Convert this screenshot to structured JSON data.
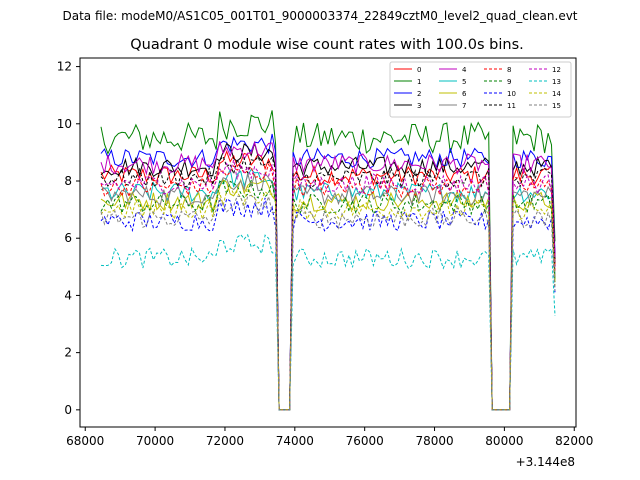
{
  "header": {
    "suptitle": "Data file: modeM0/AS1C05_001T01_9000003374_22849cztM0_level2_quad_clean.evt",
    "title": "Quadrant 0 module wise count rates with 100.0s bins."
  },
  "axes": {
    "offset_label": "+3.144e8",
    "x_ticks": [
      "68000",
      "70000",
      "72000",
      "74000",
      "76000",
      "78000",
      "80000",
      "82000"
    ],
    "y_ticks": [
      "0",
      "2",
      "4",
      "6",
      "8",
      "10",
      "12"
    ]
  },
  "chart_data": {
    "type": "line",
    "title": "Quadrant 0 module wise count rates with 100.0s bins.",
    "xlabel": "",
    "ylabel": "",
    "x_offset": 314400000,
    "xlim": [
      67850,
      82050
    ],
    "ylim": [
      -0.6,
      12.3
    ],
    "x_start": 68450,
    "x_end": 81450,
    "bin_seconds": 100,
    "gaps": [
      [
        73550,
        73850
      ],
      [
        79650,
        80150
      ]
    ],
    "legend_location": "upper right",
    "series": [
      {
        "name": "0",
        "color": "#ff0000",
        "dash": "solid",
        "level": 8.2
      },
      {
        "name": "1",
        "color": "#008000",
        "dash": "solid",
        "level": 9.5
      },
      {
        "name": "2",
        "color": "#0000ff",
        "dash": "solid",
        "level": 8.8
      },
      {
        "name": "3",
        "color": "#000000",
        "dash": "solid",
        "level": 8.5
      },
      {
        "name": "4",
        "color": "#bf00bf",
        "dash": "solid",
        "level": 8.6
      },
      {
        "name": "5",
        "color": "#00bfbf",
        "dash": "solid",
        "level": 7.6
      },
      {
        "name": "6",
        "color": "#bfbf00",
        "dash": "solid",
        "level": 7.3
      },
      {
        "name": "7",
        "color": "#808080",
        "dash": "solid",
        "level": 7.5
      },
      {
        "name": "8",
        "color": "#ff0000",
        "dash": "dashed",
        "level": 7.8
      },
      {
        "name": "9",
        "color": "#008000",
        "dash": "dashed",
        "level": 7.2
      },
      {
        "name": "10",
        "color": "#0000ff",
        "dash": "dashed",
        "level": 6.6
      },
      {
        "name": "11",
        "color": "#000000",
        "dash": "dashed",
        "level": 8.1
      },
      {
        "name": "12",
        "color": "#bf00bf",
        "dash": "dashed",
        "level": 7.9
      },
      {
        "name": "13",
        "color": "#00bfbf",
        "dash": "dashed",
        "level": 5.3
      },
      {
        "name": "14",
        "color": "#bfbf00",
        "dash": "dashed",
        "level": 7.0
      },
      {
        "name": "15",
        "color": "#808080",
        "dash": "dashed",
        "level": 6.7
      }
    ]
  }
}
